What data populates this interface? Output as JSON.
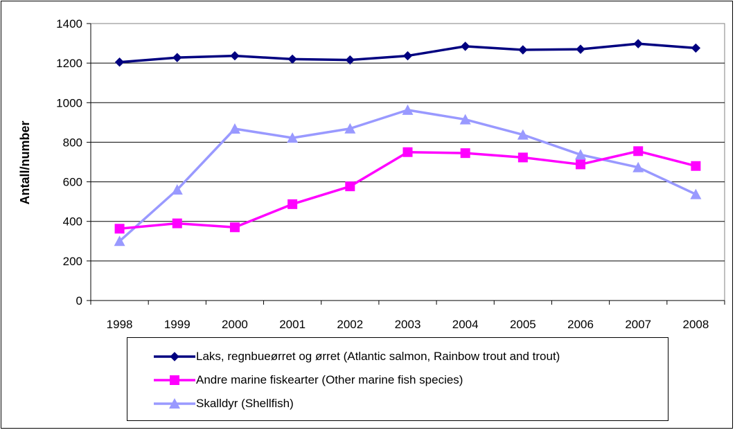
{
  "chart_data": {
    "type": "line",
    "title": "",
    "xlabel": "",
    "ylabel": "Antall/number",
    "ylim": [
      0,
      1400
    ],
    "yticks": [
      0,
      200,
      400,
      600,
      800,
      1000,
      1200,
      1400
    ],
    "grid": true,
    "legend_position": "bottom",
    "categories": [
      "1998",
      "1999",
      "2000",
      "2001",
      "2002",
      "2003",
      "2004",
      "2005",
      "2006",
      "2007",
      "2008"
    ],
    "series": [
      {
        "name": "Laks, regnbueørret og ørret (Atlantic salmon, Rainbow trout and trout)",
        "color": "#000080",
        "marker": "diamond",
        "values": [
          1205,
          1228,
          1237,
          1220,
          1216,
          1237,
          1285,
          1267,
          1270,
          1298,
          1276
        ]
      },
      {
        "name": "Andre marine fiskearter (Other marine fish species)",
        "color": "#FF00FF",
        "marker": "square",
        "values": [
          363,
          390,
          370,
          487,
          577,
          750,
          745,
          723,
          688,
          755,
          680
        ]
      },
      {
        "name": "Skalldyr (Shellfish)",
        "color": "#9999FF",
        "marker": "triangle",
        "values": [
          300,
          560,
          868,
          822,
          869,
          963,
          915,
          838,
          737,
          673,
          537
        ]
      }
    ]
  }
}
